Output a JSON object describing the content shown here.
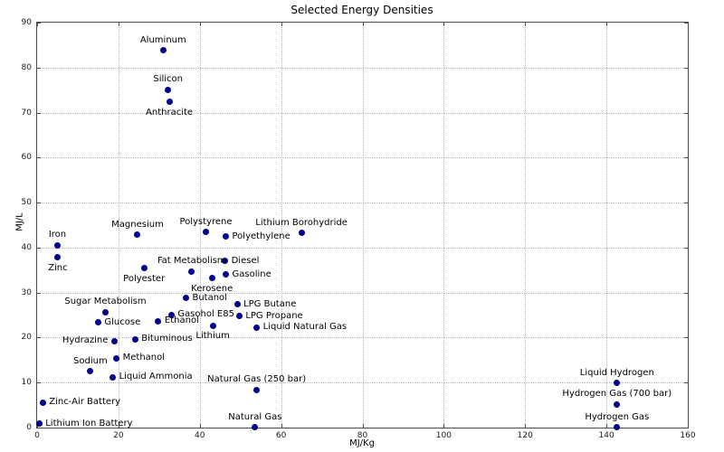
{
  "chart_data": {
    "type": "scatter",
    "title": "Selected Energy Densities",
    "xlabel": "MJ/Kg",
    "ylabel": "MJ/L",
    "xlim": [
      0,
      160
    ],
    "ylim": [
      0,
      90
    ],
    "x_ticks": [
      0,
      20,
      40,
      60,
      80,
      100,
      120,
      140,
      160
    ],
    "y_ticks": [
      0,
      10,
      20,
      30,
      40,
      50,
      60,
      70,
      80,
      90
    ],
    "grid": true,
    "legend": "none",
    "marker_color": "#00008b",
    "points": [
      {
        "label": "Aluminum",
        "x": 31.0,
        "y": 83.8,
        "label_pos": "above"
      },
      {
        "label": "Silicon",
        "x": 32.2,
        "y": 75.1,
        "label_pos": "above"
      },
      {
        "label": "Anthracite",
        "x": 32.5,
        "y": 72.4,
        "label_pos": "below"
      },
      {
        "label": "Magnesium",
        "x": 24.7,
        "y": 42.8,
        "label_pos": "above"
      },
      {
        "label": "Polystyrene",
        "x": 41.5,
        "y": 43.4,
        "label_pos": "above"
      },
      {
        "label": "Polyethylene",
        "x": 46.4,
        "y": 42.4,
        "label_pos": "right"
      },
      {
        "label": "Lithium Borohydride",
        "x": 65.0,
        "y": 43.2,
        "label_pos": "above"
      },
      {
        "label": "Iron",
        "x": 5.0,
        "y": 40.5,
        "label_pos": "above"
      },
      {
        "label": "Zinc",
        "x": 5.1,
        "y": 37.8,
        "label_pos": "below"
      },
      {
        "label": "Diesel",
        "x": 46.2,
        "y": 37.0,
        "label_pos": "right"
      },
      {
        "label": "Fat Metabolism",
        "x": 38.0,
        "y": 34.7,
        "label_pos": "above"
      },
      {
        "label": "Polyester",
        "x": 26.3,
        "y": 35.4,
        "label_pos": "below"
      },
      {
        "label": "Gasoline",
        "x": 46.4,
        "y": 34.0,
        "label_pos": "right"
      },
      {
        "label": "Kerosene",
        "x": 43.0,
        "y": 33.2,
        "label_pos": "below"
      },
      {
        "label": "Butanol",
        "x": 36.6,
        "y": 28.8,
        "label_pos": "right"
      },
      {
        "label": "Sugar Metabolism",
        "x": 16.8,
        "y": 25.7,
        "label_pos": "above"
      },
      {
        "label": "LPG Butane",
        "x": 49.2,
        "y": 27.4,
        "label_pos": "right"
      },
      {
        "label": "LPG Propane",
        "x": 49.7,
        "y": 24.8,
        "label_pos": "right"
      },
      {
        "label": "Gasohol E85",
        "x": 33.0,
        "y": 25.1,
        "label_pos": "right"
      },
      {
        "label": "Glucose",
        "x": 15.0,
        "y": 23.4,
        "label_pos": "right"
      },
      {
        "label": "Ethanol",
        "x": 29.8,
        "y": 23.7,
        "label_pos": "right"
      },
      {
        "label": "Lithium",
        "x": 43.2,
        "y": 22.7,
        "label_pos": "below"
      },
      {
        "label": "Liquid Natural Gas",
        "x": 54.0,
        "y": 22.2,
        "label_pos": "right"
      },
      {
        "label": "Hydrazine",
        "x": 19.0,
        "y": 19.2,
        "label_pos": "left"
      },
      {
        "label": "Bituminous",
        "x": 24.1,
        "y": 19.6,
        "label_pos": "right"
      },
      {
        "label": "Methanol",
        "x": 19.5,
        "y": 15.4,
        "label_pos": "right"
      },
      {
        "label": "Sodium",
        "x": 13.1,
        "y": 12.5,
        "label_pos": "above"
      },
      {
        "label": "Liquid Ammonia",
        "x": 18.6,
        "y": 11.2,
        "label_pos": "right"
      },
      {
        "label": "Natural Gas (250 bar)",
        "x": 54.0,
        "y": 8.4,
        "label_pos": "above"
      },
      {
        "label": "Zinc-Air Battery",
        "x": 1.4,
        "y": 5.6,
        "label_pos": "right"
      },
      {
        "label": "Lithium Ion Battery",
        "x": 0.5,
        "y": 0.9,
        "label_pos": "right"
      },
      {
        "label": "Natural Gas",
        "x": 53.6,
        "y": 0.1,
        "label_pos": "above"
      },
      {
        "label": "Liquid Hydrogen",
        "x": 142.6,
        "y": 9.9,
        "label_pos": "above"
      },
      {
        "label": "Hydrogen Gas (700 bar)",
        "x": 142.6,
        "y": 5.2,
        "label_pos": "above"
      },
      {
        "label": "Hydrogen Gas",
        "x": 142.6,
        "y": 0.1,
        "label_pos": "above"
      }
    ]
  }
}
